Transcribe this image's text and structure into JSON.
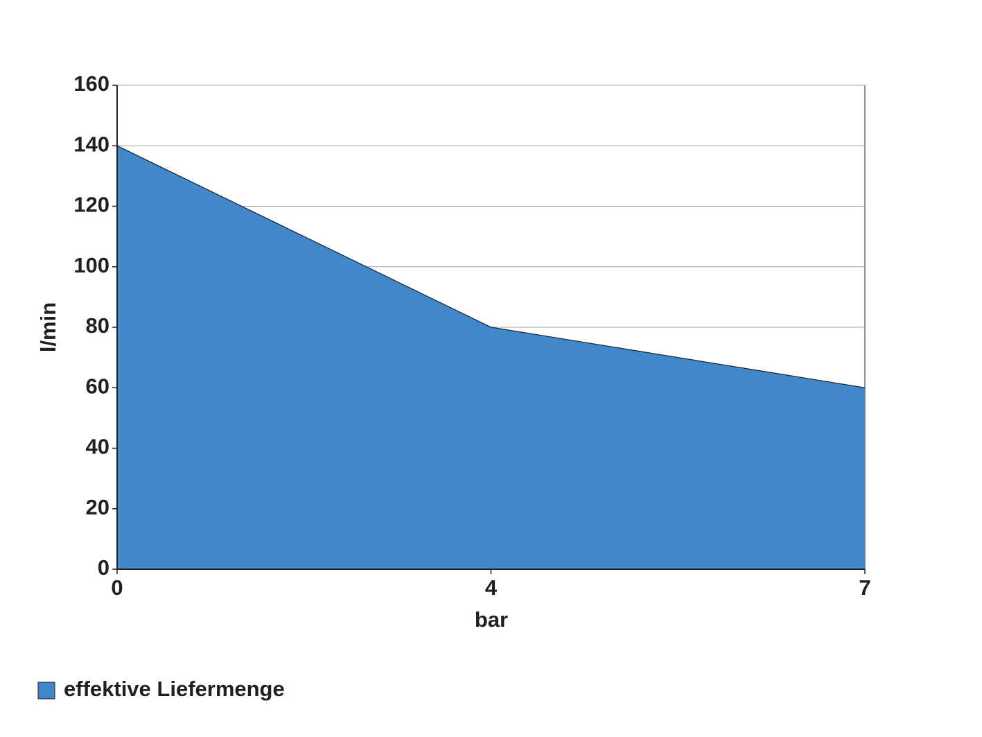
{
  "chart_data": {
    "type": "area",
    "categories": [
      "0",
      "4",
      "7"
    ],
    "series": [
      {
        "name": "effektive Liefermenge",
        "color": "#4287c8",
        "values": [
          140,
          80,
          60
        ]
      }
    ],
    "x_label": "bar",
    "y_label": "l/min",
    "ylim": [
      0,
      160
    ],
    "yticks": [
      0,
      20,
      40,
      60,
      80,
      100,
      120,
      140,
      160
    ],
    "grid": true,
    "legend": "bottom-left"
  }
}
